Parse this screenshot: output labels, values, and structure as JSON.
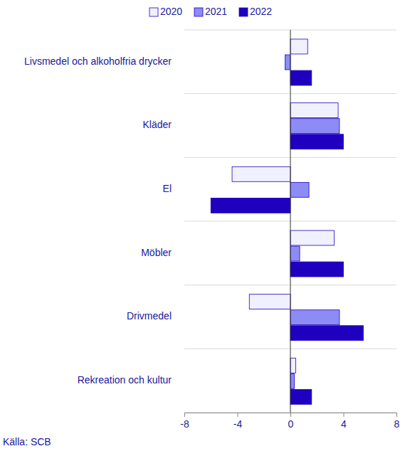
{
  "chart_data": {
    "type": "bar",
    "orientation": "horizontal",
    "categories": [
      "Livsmedel och alkoholfria drycker",
      "Kläder",
      "El",
      "Möbler",
      "Drivmedel",
      "Rekreation och kultur"
    ],
    "series": [
      {
        "name": "2020",
        "color": "#f0f0ff",
        "values": [
          1.3,
          3.6,
          -4.4,
          3.3,
          -3.1,
          0.4
        ]
      },
      {
        "name": "2021",
        "color": "#8c8cf4",
        "values": [
          -0.4,
          3.7,
          1.4,
          0.7,
          3.7,
          0.3
        ]
      },
      {
        "name": "2022",
        "color": "#1e00be",
        "values": [
          1.6,
          4.0,
          -6.0,
          4.0,
          5.5,
          1.6
        ]
      }
    ],
    "xlim": [
      -8,
      8
    ],
    "xticks": [
      -8,
      -4,
      0,
      4,
      8
    ],
    "legend": "top",
    "source": "Källa: SCB"
  }
}
